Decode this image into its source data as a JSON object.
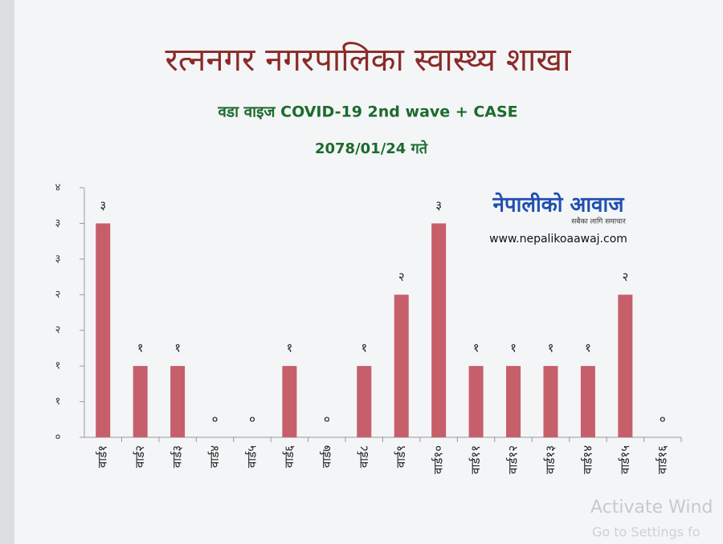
{
  "chart_data": {
    "type": "bar",
    "title": "रत्ननगर नगरपालिका स्वास्थ्य शाखा",
    "subtitle": "वडा वाइज  COVID-19  2nd wave + CASE",
    "date": "2078/01/24 गते",
    "categories": [
      "वार्ड१",
      "वार्ड२",
      "वार्ड३",
      "वार्ड४",
      "वार्ड५",
      "वार्ड६",
      "वार्ड७",
      "वार्ड८",
      "वार्ड९",
      "वार्ड१०",
      "वार्ड११",
      "वार्ड१२",
      "वार्ड१३",
      "वार्ड१४",
      "वार्ड१५",
      "वार्ड१६"
    ],
    "values": [
      3,
      1,
      1,
      0,
      0,
      1,
      0,
      1,
      2,
      3,
      1,
      1,
      1,
      1,
      2,
      0
    ],
    "value_labels": [
      "३",
      "१",
      "१",
      "०",
      "०",
      "१",
      "०",
      "१",
      "२",
      "३",
      "१",
      "१",
      "१",
      "१",
      "२",
      "०"
    ],
    "color": "#c65f6a",
    "ylim": [
      0,
      3.5
    ],
    "yticks": [
      {
        "value": 0,
        "label": "०"
      },
      {
        "value": 0.5,
        "label": "१"
      },
      {
        "value": 1,
        "label": "१"
      },
      {
        "value": 1.5,
        "label": "२"
      },
      {
        "value": 2,
        "label": "२"
      },
      {
        "value": 2.5,
        "label": "३"
      },
      {
        "value": 3,
        "label": "३"
      },
      {
        "value": 3.5,
        "label": "४"
      }
    ],
    "grid": false,
    "logo_title": "नेपालीको आवाज",
    "logo_tagline": "सबैका लागि समाचार",
    "website": "www.nepalikoaawaj.com",
    "watermark": [
      "Activate Wind",
      "Go to Settings fo"
    ]
  }
}
